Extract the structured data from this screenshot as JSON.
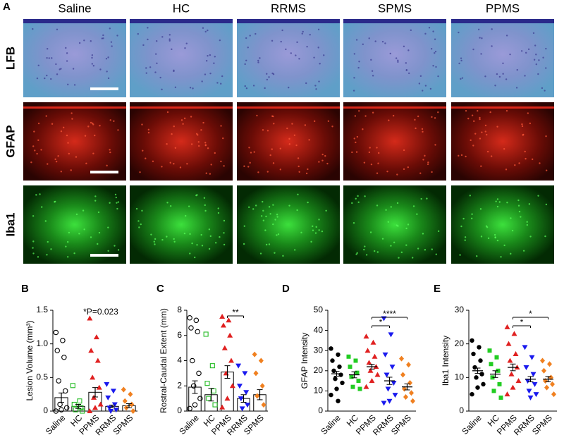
{
  "figure": {
    "panel_a": {
      "letter": "A",
      "columns": [
        "Saline",
        "HC",
        "RRMS",
        "SPMS",
        "PPMS"
      ],
      "rows": [
        "LFB",
        "GFAP",
        "Iba1"
      ],
      "row_colors": [
        "#1a1acc",
        "#e02020",
        "#22cc22"
      ]
    }
  },
  "chart_data": [
    {
      "type": "bar",
      "letter": "B",
      "y_label": "Lesion Volume (mm³)",
      "annotation": "*P=0.023",
      "categories": [
        "Saline",
        "HC",
        "PPMS",
        "RRMS",
        "SPMS"
      ],
      "colors": [
        "#000000",
        "#22bb22",
        "#e02020",
        "#1a1aee",
        "#f08020"
      ],
      "markers": [
        "open-circle",
        "open-square",
        "triangle",
        "triangle-down",
        "diamond"
      ],
      "means": [
        0.2,
        0.07,
        0.28,
        0.07,
        0.08
      ],
      "sems": [
        0.07,
        0.03,
        0.07,
        0.02,
        0.03
      ],
      "points": [
        [
          1.17,
          1.05,
          0.9,
          0.8,
          0.45,
          0.3,
          0.1,
          0.05,
          0.02,
          0
        ],
        [
          0.38,
          0.15,
          0.1,
          0.05,
          0.02,
          0
        ],
        [
          1.38,
          1.1,
          0.9,
          0.75,
          0.5,
          0.35,
          0.2,
          0.1,
          0.05,
          0
        ],
        [
          0.4,
          0.3,
          0.2,
          0.1,
          0.05,
          0.02,
          0
        ],
        [
          0.32,
          0.25,
          0.15,
          0.1,
          0.05,
          0
        ]
      ],
      "ylim": [
        0,
        1.5
      ],
      "yticks": [
        0,
        0.5,
        {
          "value": 1,
          "label": "1.0"
        },
        1.5
      ]
    },
    {
      "type": "bar",
      "letter": "C",
      "y_label": "Rostral-Caudal Extent (mm)",
      "categories": [
        "Saline",
        "HC",
        "PPMS",
        "RRMS",
        "SPMS"
      ],
      "colors": [
        "#000000",
        "#22bb22",
        "#e02020",
        "#1a1aee",
        "#f08020"
      ],
      "markers": [
        "open-circle",
        "open-square",
        "triangle",
        "triangle-down",
        "diamond"
      ],
      "means": [
        1.9,
        1.3,
        3.1,
        1.0,
        1.3
      ],
      "sems": [
        0.5,
        0.5,
        0.5,
        0.3,
        0.4
      ],
      "points": [
        [
          7.4,
          7.2,
          6.6,
          6.3,
          4.0,
          3.0,
          2.0,
          1.0,
          0.5,
          0.2
        ],
        [
          6.1,
          3.6,
          2.2,
          1.6,
          1.0,
          0.5
        ],
        [
          7.5,
          7.2,
          6.8,
          6.0,
          5.0,
          4.0,
          3.0,
          2.0,
          1.0,
          0.3
        ],
        [
          3.6,
          3.0,
          2.0,
          1.5,
          1.0,
          0.5,
          0.2
        ],
        [
          4.5,
          4.0,
          3.0,
          2.0,
          1.2,
          0.5
        ]
      ],
      "significance": [
        {
          "text": "**",
          "between": [
            "PPMS",
            "RRMS"
          ]
        }
      ],
      "ylim": [
        0,
        8
      ],
      "yticks": [
        0,
        2,
        4,
        6,
        8
      ]
    },
    {
      "type": "scatter",
      "letter": "D",
      "y_label": "GFAP Intensity",
      "categories": [
        "Saline",
        "HC",
        "PPMS",
        "RRMS",
        "SPMS"
      ],
      "colors": [
        "#000000",
        "#22cc22",
        "#e02020",
        "#1a1aee",
        "#f08020"
      ],
      "markers": [
        "circle",
        "square",
        "triangle",
        "triangle-down",
        "diamond"
      ],
      "means": [
        18.5,
        18,
        22,
        15,
        12
      ],
      "sems": [
        1.2,
        1.5,
        1.2,
        1.8,
        1.5
      ],
      "points": [
        [
          31,
          28,
          25,
          22,
          20,
          18,
          16,
          14,
          11,
          8,
          5
        ],
        [
          27,
          25,
          22,
          19,
          17,
          15,
          12,
          11
        ],
        [
          37,
          34,
          30,
          27,
          24,
          22,
          20,
          18,
          15,
          12
        ],
        [
          46,
          38,
          28,
          22,
          18,
          14,
          11,
          8,
          5,
          4
        ],
        [
          26,
          23,
          18,
          14,
          11,
          9,
          7,
          5
        ]
      ],
      "significance": [
        {
          "text": "*",
          "between": [
            "PPMS",
            "RRMS"
          ]
        },
        {
          "text": "****",
          "between": [
            "PPMS",
            "SPMS"
          ]
        }
      ],
      "ylim": [
        0,
        50
      ],
      "yticks": [
        0,
        10,
        20,
        30,
        40,
        50
      ]
    },
    {
      "type": "scatter",
      "letter": "E",
      "y_label": "Iba1 Intensity",
      "categories": [
        "Saline",
        "HC",
        "PPMS",
        "RRMS",
        "SPMS"
      ],
      "colors": [
        "#000000",
        "#22cc22",
        "#e02020",
        "#1a1aee",
        "#f08020"
      ],
      "markers": [
        "circle",
        "square",
        "triangle",
        "triangle-down",
        "diamond"
      ],
      "means": [
        12,
        11,
        13,
        9.5,
        9.5
      ],
      "sems": [
        0.8,
        1,
        1,
        0.8,
        0.8
      ],
      "points": [
        [
          21,
          19,
          17,
          15,
          13,
          11,
          10,
          8,
          7,
          5
        ],
        [
          18,
          16,
          14,
          12,
          10,
          8,
          6,
          4
        ],
        [
          25,
          23,
          20,
          17,
          15,
          13,
          11,
          9,
          7,
          5
        ],
        [
          19,
          16,
          13,
          11,
          9,
          8,
          6,
          5,
          4
        ],
        [
          15,
          14,
          12,
          10,
          9,
          8,
          7,
          5
        ]
      ],
      "significance": [
        {
          "text": "*",
          "between": [
            "PPMS",
            "RRMS"
          ]
        },
        {
          "text": "*",
          "between": [
            "PPMS",
            "SPMS"
          ]
        }
      ],
      "ylim": [
        0,
        30
      ],
      "yticks": [
        0,
        10,
        20,
        30
      ]
    }
  ]
}
